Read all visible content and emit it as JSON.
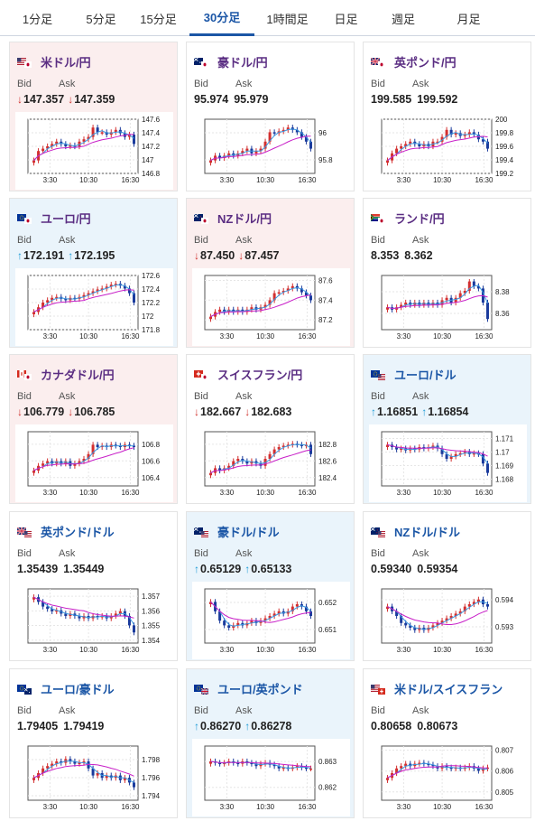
{
  "tabs": [
    {
      "label": "1分足",
      "active": false
    },
    {
      "label": "5分足",
      "active": false
    },
    {
      "label": "15分足",
      "active": false
    },
    {
      "label": "30分足",
      "active": true
    },
    {
      "label": "1時間足",
      "active": false
    },
    {
      "label": "日足",
      "active": false
    },
    {
      "label": "週足",
      "active": false
    },
    {
      "label": "月足",
      "active": false
    }
  ],
  "labels": {
    "bid": "Bid",
    "ask": "Ask"
  },
  "colors": {
    "accent": "#1b56a6",
    "title_cross": "#5a2d82",
    "down": "#d0312d",
    "up": "#1a9ad6",
    "candle_up": "#d32f2f",
    "candle_down": "#1a3a9c",
    "ma_short": "#3a97e0",
    "ma_long": "#c81fc8",
    "bg_pink": "#fbeeee",
    "bg_blue": "#eaf4fb"
  },
  "cards": [
    {
      "title": "米ドル/円",
      "flag": "us-jp-flag-icon",
      "bg": "pink",
      "dir": "down",
      "bid": "147.357",
      "ask": "147.359",
      "chart": {
        "x_labels": [
          "3:30",
          "10:30",
          "16:30"
        ],
        "y_ticks": [
          "147.6",
          "147.4",
          "147.2",
          "147",
          "146.8"
        ],
        "y_min": 146.8,
        "y_max": 147.6,
        "shape": [
          0.2,
          0.4,
          0.45,
          0.5,
          0.55,
          0.6,
          0.55,
          0.5,
          0.52,
          0.5,
          0.6,
          0.65,
          0.7,
          0.9,
          0.8,
          0.8,
          0.75,
          0.8,
          0.85,
          0.78,
          0.7,
          0.75,
          0.55
        ]
      }
    },
    {
      "title": "豪ドル/円",
      "flag": "au-jp-flag-icon",
      "bg": "white",
      "dir": "none",
      "bid": "95.974",
      "ask": "95.979",
      "chart": {
        "x_labels": [
          "3:30",
          "10:30",
          "16:30"
        ],
        "y_ticks": [
          "96",
          "95.8"
        ],
        "y_min": 95.7,
        "y_max": 96.1,
        "shape": [
          0.2,
          0.3,
          0.25,
          0.3,
          0.35,
          0.3,
          0.35,
          0.4,
          0.45,
          0.35,
          0.4,
          0.45,
          0.6,
          0.8,
          0.78,
          0.82,
          0.85,
          0.9,
          0.85,
          0.8,
          0.7,
          0.6,
          0.45
        ]
      }
    },
    {
      "title": "英ポンド/円",
      "flag": "uk-jp-flag-icon",
      "bg": "white",
      "dir": "none",
      "bid": "199.585",
      "ask": "199.592",
      "chart": {
        "x_labels": [
          "3:30",
          "10:30",
          "16:30"
        ],
        "y_ticks": [
          "200",
          "199.8",
          "199.6",
          "199.4",
          "199.2"
        ],
        "y_min": 199.2,
        "y_max": 200.0,
        "shape": [
          0.2,
          0.35,
          0.45,
          0.5,
          0.55,
          0.6,
          0.55,
          0.5,
          0.55,
          0.5,
          0.6,
          0.6,
          0.7,
          0.85,
          0.75,
          0.78,
          0.72,
          0.75,
          0.8,
          0.75,
          0.65,
          0.6,
          0.45
        ]
      }
    },
    {
      "title": "ユーロ/円",
      "flag": "eu-jp-flag-icon",
      "bg": "blue",
      "dir": "up",
      "bid": "172.191",
      "ask": "172.195",
      "chart": {
        "x_labels": [
          "3:30",
          "10:30",
          "16:30"
        ],
        "y_ticks": [
          "172.6",
          "172.4",
          "172.2",
          "172",
          "171.8"
        ],
        "y_min": 171.8,
        "y_max": 172.6,
        "shape": [
          0.3,
          0.4,
          0.5,
          0.55,
          0.6,
          0.62,
          0.58,
          0.55,
          0.6,
          0.58,
          0.62,
          0.66,
          0.7,
          0.74,
          0.78,
          0.8,
          0.84,
          0.88,
          0.9,
          0.86,
          0.8,
          0.7,
          0.5
        ]
      }
    },
    {
      "title": "NZドル/円",
      "flag": "nz-jp-flag-icon",
      "bg": "pink",
      "dir": "down",
      "bid": "87.450",
      "ask": "87.457",
      "chart": {
        "x_labels": [
          "3:30",
          "10:30",
          "16:30"
        ],
        "y_ticks": [
          "87.6",
          "87.4",
          "87.2"
        ],
        "y_min": 87.1,
        "y_max": 87.65,
        "shape": [
          0.2,
          0.3,
          0.35,
          0.3,
          0.35,
          0.3,
          0.35,
          0.3,
          0.35,
          0.4,
          0.35,
          0.4,
          0.45,
          0.55,
          0.7,
          0.72,
          0.75,
          0.8,
          0.85,
          0.8,
          0.72,
          0.65,
          0.55
        ]
      }
    },
    {
      "title": "ランド/円",
      "flag": "za-jp-flag-icon",
      "bg": "white",
      "dir": "none",
      "bid": "8.353",
      "ask": "8.362",
      "chart": {
        "x_labels": [
          "3:30",
          "10:30",
          "16:30"
        ],
        "y_ticks": [
          "8.38",
          "8.36"
        ],
        "y_min": 8.345,
        "y_max": 8.395,
        "shape": [
          0.4,
          0.35,
          0.4,
          0.45,
          0.5,
          0.45,
          0.5,
          0.45,
          0.5,
          0.45,
          0.5,
          0.45,
          0.55,
          0.6,
          0.5,
          0.6,
          0.7,
          0.75,
          0.95,
          0.85,
          0.8,
          0.5,
          0.15
        ]
      }
    },
    {
      "title": "カナダドル/円",
      "flag": "ca-jp-flag-icon",
      "bg": "pink",
      "dir": "down",
      "bid": "106.779",
      "ask": "106.785",
      "chart": {
        "x_labels": [
          "3:30",
          "10:30",
          "16:30"
        ],
        "y_ticks": [
          "106.8",
          "106.6",
          "106.4"
        ],
        "y_min": 106.3,
        "y_max": 106.95,
        "shape": [
          0.25,
          0.35,
          0.4,
          0.45,
          0.4,
          0.45,
          0.4,
          0.45,
          0.35,
          0.4,
          0.45,
          0.5,
          0.6,
          0.8,
          0.75,
          0.78,
          0.75,
          0.8,
          0.78,
          0.75,
          0.8,
          0.78,
          0.75
        ]
      }
    },
    {
      "title": "スイスフラン/円",
      "flag": "ch-jp-flag-icon",
      "bg": "white",
      "dir": "down",
      "bid": "182.667",
      "ask": "182.683",
      "chart": {
        "x_labels": [
          "3:30",
          "10:30",
          "16:30"
        ],
        "y_ticks": [
          "182.8",
          "182.6",
          "182.4"
        ],
        "y_min": 182.3,
        "y_max": 182.95,
        "shape": [
          0.2,
          0.3,
          0.25,
          0.3,
          0.35,
          0.45,
          0.5,
          0.45,
          0.4,
          0.45,
          0.4,
          0.35,
          0.5,
          0.6,
          0.7,
          0.75,
          0.78,
          0.8,
          0.82,
          0.8,
          0.78,
          0.8,
          0.6
        ]
      }
    },
    {
      "title": "ユーロ/ドル",
      "flag": "eu-us-flag-icon",
      "bg": "blue",
      "dir": "up",
      "usd": true,
      "bid": "1.16851",
      "ask": "1.16854",
      "chart": {
        "x_labels": [
          "3:30",
          "10:30",
          "16:30"
        ],
        "y_ticks": [
          "1.171",
          "1.17",
          "1.169",
          "1.168"
        ],
        "y_min": 1.1675,
        "y_max": 1.1715,
        "shape": [
          0.8,
          0.75,
          0.7,
          0.72,
          0.68,
          0.72,
          0.7,
          0.75,
          0.72,
          0.75,
          0.78,
          0.72,
          0.6,
          0.5,
          0.55,
          0.6,
          0.62,
          0.65,
          0.6,
          0.62,
          0.6,
          0.4,
          0.2
        ]
      }
    },
    {
      "title": "英ポンド/ドル",
      "flag": "uk-us-flag-icon",
      "bg": "white",
      "dir": "none",
      "usd": true,
      "bid": "1.35439",
      "ask": "1.35449",
      "chart": {
        "x_labels": [
          "3:30",
          "10:30",
          "16:30"
        ],
        "y_ticks": [
          "1.357",
          "1.356",
          "1.355",
          "1.354"
        ],
        "y_min": 1.3538,
        "y_max": 1.3575,
        "shape": [
          0.9,
          0.8,
          0.7,
          0.65,
          0.6,
          0.62,
          0.55,
          0.5,
          0.55,
          0.5,
          0.45,
          0.5,
          0.45,
          0.5,
          0.48,
          0.5,
          0.45,
          0.5,
          0.55,
          0.6,
          0.5,
          0.3,
          0.15
        ]
      }
    },
    {
      "title": "豪ドル/ドル",
      "flag": "au-us-flag-icon",
      "bg": "blue",
      "dir": "up",
      "usd": true,
      "bid": "0.65129",
      "ask": "0.65133",
      "chart": {
        "x_labels": [
          "3:30",
          "10:30",
          "16:30"
        ],
        "y_ticks": [
          "0.652",
          "0.651"
        ],
        "y_min": 0.6505,
        "y_max": 0.6525,
        "shape": [
          0.8,
          0.6,
          0.4,
          0.3,
          0.25,
          0.3,
          0.35,
          0.3,
          0.35,
          0.4,
          0.35,
          0.4,
          0.45,
          0.5,
          0.55,
          0.6,
          0.55,
          0.6,
          0.7,
          0.75,
          0.7,
          0.6,
          0.5
        ]
      }
    },
    {
      "title": "NZドル/ドル",
      "flag": "nz-us-flag-icon",
      "bg": "white",
      "dir": "none",
      "usd": true,
      "bid": "0.59340",
      "ask": "0.59354",
      "chart": {
        "x_labels": [
          "3:30",
          "10:30",
          "16:30"
        ],
        "y_ticks": [
          "0.594",
          "0.593"
        ],
        "y_min": 0.5924,
        "y_max": 0.5944,
        "shape": [
          0.7,
          0.6,
          0.5,
          0.35,
          0.3,
          0.25,
          0.2,
          0.25,
          0.2,
          0.25,
          0.3,
          0.35,
          0.4,
          0.45,
          0.5,
          0.55,
          0.6,
          0.7,
          0.75,
          0.8,
          0.85,
          0.75,
          0.7
        ]
      }
    },
    {
      "title": "ユーロ/豪ドル",
      "flag": "eu-au-flag-icon",
      "bg": "white",
      "dir": "none",
      "usd": true,
      "bid": "1.79405",
      "ask": "1.79419",
      "chart": {
        "x_labels": [
          "3:30",
          "10:30",
          "16:30"
        ],
        "y_ticks": [
          "1.798",
          "1.796",
          "1.794"
        ],
        "y_min": 1.7935,
        "y_max": 1.7995,
        "shape": [
          0.4,
          0.5,
          0.6,
          0.65,
          0.7,
          0.75,
          0.72,
          0.8,
          0.75,
          0.7,
          0.72,
          0.75,
          0.6,
          0.45,
          0.5,
          0.4,
          0.45,
          0.4,
          0.45,
          0.35,
          0.4,
          0.3,
          0.2
        ]
      }
    },
    {
      "title": "ユーロ/英ポンド",
      "flag": "eu-uk-flag-icon",
      "bg": "blue",
      "dir": "up",
      "usd": true,
      "bid": "0.86270",
      "ask": "0.86278",
      "chart": {
        "x_labels": [
          "3:30",
          "10:30",
          "16:30"
        ],
        "y_ticks": [
          "0.863",
          "0.862"
        ],
        "y_min": 0.8615,
        "y_max": 0.8636,
        "shape": [
          0.75,
          0.72,
          0.7,
          0.72,
          0.75,
          0.72,
          0.7,
          0.75,
          0.72,
          0.7,
          0.65,
          0.7,
          0.72,
          0.68,
          0.65,
          0.6,
          0.62,
          0.6,
          0.62,
          0.65,
          0.62,
          0.6,
          0.6
        ]
      }
    },
    {
      "title": "米ドル/スイスフラン",
      "flag": "us-ch-flag-icon",
      "bg": "white",
      "dir": "none",
      "usd": true,
      "bid": "0.80658",
      "ask": "0.80673",
      "chart": {
        "x_labels": [
          "3:30",
          "10:30",
          "16:30"
        ],
        "y_ticks": [
          "0.807",
          "0.806",
          "0.805"
        ],
        "y_min": 0.8046,
        "y_max": 0.8072,
        "shape": [
          0.4,
          0.5,
          0.6,
          0.65,
          0.7,
          0.65,
          0.7,
          0.72,
          0.7,
          0.68,
          0.65,
          0.6,
          0.65,
          0.62,
          0.6,
          0.62,
          0.6,
          0.62,
          0.65,
          0.6,
          0.55,
          0.6,
          0.62
        ]
      }
    }
  ]
}
